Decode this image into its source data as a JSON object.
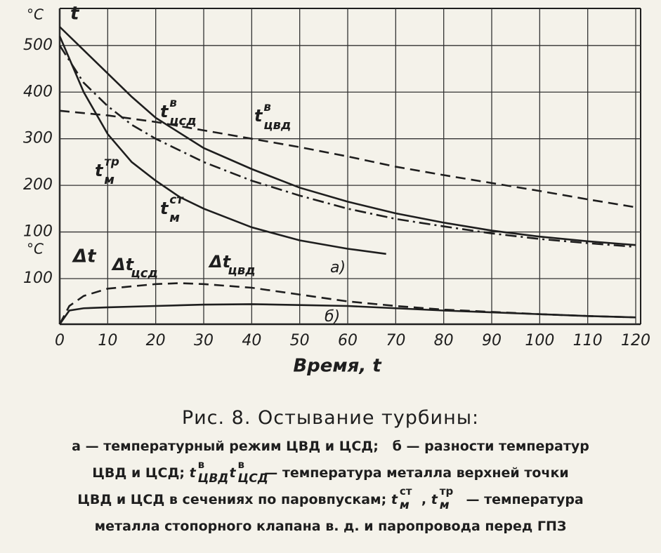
{
  "chart_data": [
    {
      "type": "line",
      "yunit": "°C",
      "ylabel": "t",
      "panel_label": "а)",
      "ylim": [
        0,
        575
      ],
      "yticks": [
        100,
        200,
        300,
        400,
        500
      ],
      "grid": true,
      "series": [
        {
          "name": {
            "base": "t",
            "sup": "в",
            "sub": "цсд"
          },
          "color": "#1e1e1e",
          "dash": "solid",
          "x": [
            0,
            5,
            10,
            15,
            20,
            30,
            40,
            50,
            60,
            70,
            80,
            90,
            100,
            110,
            120
          ],
          "values": [
            540,
            490,
            440,
            390,
            345,
            280,
            235,
            195,
            165,
            140,
            120,
            103,
            90,
            80,
            72
          ]
        },
        {
          "name": {
            "base": "t",
            "sup": "в",
            "sub": "цвд"
          },
          "color": "#1e1e1e",
          "dash": "dashed",
          "x": [
            0,
            10,
            20,
            30,
            40,
            50,
            60,
            70,
            80,
            90,
            100,
            110,
            120
          ],
          "values": [
            360,
            350,
            336,
            318,
            300,
            282,
            262,
            240,
            222,
            205,
            188,
            170,
            153
          ]
        },
        {
          "name": {
            "base": "t",
            "sup": "тр",
            "sub": "м"
          },
          "color": "#1e1e1e",
          "dash": "dashdot",
          "x": [
            0,
            5,
            10,
            15,
            20,
            30,
            40,
            50,
            60,
            70,
            80,
            90,
            100,
            110,
            120
          ],
          "values": [
            500,
            420,
            370,
            330,
            300,
            250,
            210,
            178,
            150,
            128,
            112,
            97,
            85,
            76,
            68
          ]
        },
        {
          "name": {
            "base": "t",
            "sup": "ст",
            "sub": "м"
          },
          "color": "#1e1e1e",
          "dash": "solid",
          "x": [
            0,
            5,
            10,
            15,
            20,
            25,
            30,
            40,
            50,
            60,
            68
          ],
          "values": [
            520,
            400,
            310,
            250,
            210,
            175,
            150,
            110,
            82,
            64,
            53
          ]
        }
      ]
    },
    {
      "type": "line",
      "yunit": "°C",
      "ylabel": "Δt",
      "panel_label": "б)",
      "ylim": [
        0,
        100
      ],
      "yticks": [
        100
      ],
      "grid": true,
      "xlim": [
        0,
        120
      ],
      "xticks": [
        0,
        10,
        20,
        30,
        40,
        50,
        60,
        70,
        80,
        90,
        100,
        110,
        120
      ],
      "xlabel": "Время, t",
      "series": [
        {
          "name": {
            "base": "Δt",
            "sub": "цсд"
          },
          "color": "#1e1e1e",
          "dash": "solid",
          "x": [
            0,
            2,
            5,
            10,
            20,
            30,
            40,
            50,
            60,
            70,
            80,
            90,
            100,
            110,
            120
          ],
          "values": [
            0,
            30,
            35,
            37,
            40,
            43,
            44,
            42,
            40,
            35,
            30,
            26,
            22,
            18,
            15
          ]
        },
        {
          "name": {
            "base": "Δt",
            "sub": "цвд"
          },
          "color": "#1e1e1e",
          "dash": "dashed",
          "x": [
            0,
            2,
            5,
            10,
            20,
            25,
            30,
            40,
            50,
            60,
            70,
            80,
            90,
            100,
            110,
            120
          ],
          "values": [
            0,
            40,
            62,
            78,
            88,
            90,
            88,
            80,
            65,
            50,
            40,
            32,
            27,
            22,
            18,
            15
          ]
        }
      ]
    }
  ],
  "caption": {
    "title": "Рис. 8. Остывание турбины:",
    "lines": [
      [
        "а — температурный режим ЦВД и ЦСД;   б — разности температур"
      ],
      [
        "ЦВД и ЦСД; ",
        {
          "base": "t",
          "sup": "в",
          "sub": "ЦВД"
        },
        ", ",
        {
          "base": "t",
          "sup": "в",
          "sub": "ЦСД"
        },
        " — температура металла верхней точки"
      ],
      [
        "ЦВД и ЦСД в сечениях по паровпускам; ",
        {
          "base": "t",
          "sup": "ст",
          "sub": "м"
        },
        ", ",
        {
          "base": "t",
          "sup": "тр",
          "sub": "м"
        },
        " — температура"
      ],
      [
        "металла стопорного клапана в. д. и паропровода перед ГПЗ"
      ]
    ]
  }
}
